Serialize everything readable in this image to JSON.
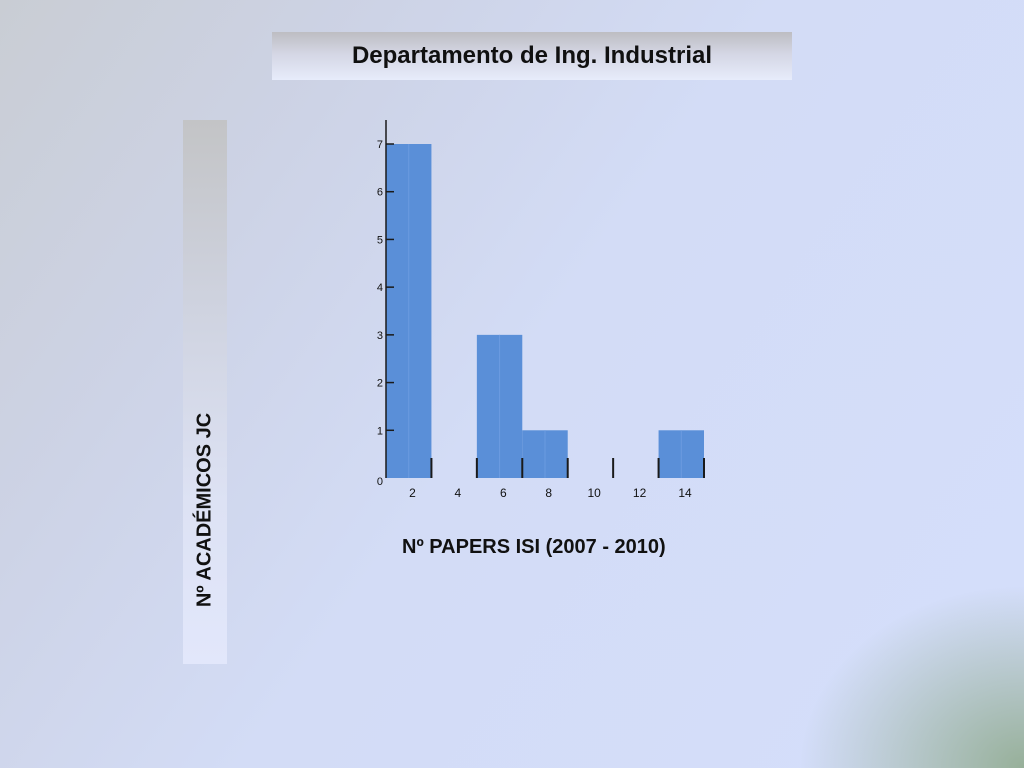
{
  "slide": {
    "title": "Departamento de Ing. Industrial"
  },
  "chart_data": {
    "type": "bar",
    "ylabel": "Nº ACADÉMICOS JC",
    "xlabel": "Nº PAPERS ISI (2007 - 2010)",
    "x_ticks": [
      2,
      4,
      6,
      8,
      10,
      12,
      14
    ],
    "y_ticks": [
      0,
      1,
      2,
      3,
      4,
      5,
      6,
      7
    ],
    "xlim": [
      0,
      14
    ],
    "ylim": [
      0,
      7
    ],
    "bins": [
      {
        "from": 0,
        "to": 2,
        "value": 7
      },
      {
        "from": 2,
        "to": 4,
        "value": 0
      },
      {
        "from": 4,
        "to": 6,
        "value": 3
      },
      {
        "from": 6,
        "to": 8,
        "value": 1
      },
      {
        "from": 8,
        "to": 10,
        "value": 0
      },
      {
        "from": 10,
        "to": 12,
        "value": 0
      },
      {
        "from": 12,
        "to": 14,
        "value": 1
      }
    ],
    "bar_color": "#5a8fd8",
    "grid": false
  }
}
